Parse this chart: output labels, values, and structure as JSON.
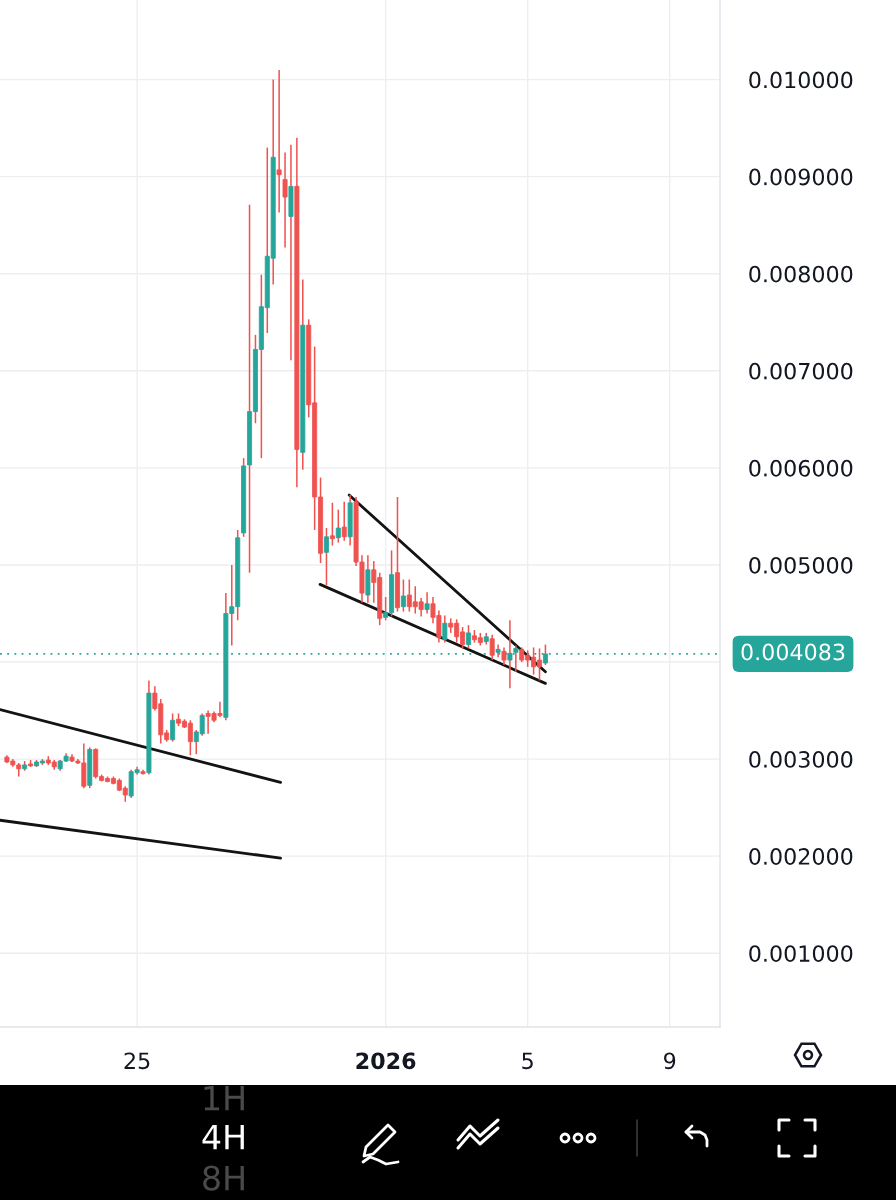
{
  "chart_data": {
    "type": "candlestick",
    "x": [
      "2025-12-21T08:00",
      "2025-12-21T12:00",
      "2025-12-21T16:00",
      "2025-12-21T20:00",
      "2025-12-22T00:00",
      "2025-12-22T04:00",
      "2025-12-22T08:00",
      "2025-12-22T12:00",
      "2025-12-22T16:00",
      "2025-12-22T20:00",
      "2025-12-23T00:00",
      "2025-12-23T04:00",
      "2025-12-23T08:00",
      "2025-12-23T12:00",
      "2025-12-23T16:00",
      "2025-12-23T20:00",
      "2025-12-24T00:00",
      "2025-12-24T04:00",
      "2025-12-24T08:00",
      "2025-12-24T12:00",
      "2025-12-24T16:00",
      "2025-12-24T20:00",
      "2025-12-25T00:00",
      "2025-12-25T04:00",
      "2025-12-25T08:00",
      "2025-12-25T12:00",
      "2025-12-25T16:00",
      "2025-12-25T20:00",
      "2025-12-26T00:00",
      "2025-12-26T04:00",
      "2025-12-26T08:00",
      "2025-12-26T12:00",
      "2025-12-26T16:00",
      "2025-12-26T20:00",
      "2025-12-27T00:00",
      "2025-12-27T04:00",
      "2025-12-27T08:00",
      "2025-12-27T12:00",
      "2025-12-27T16:00",
      "2025-12-27T20:00",
      "2025-12-28T00:00",
      "2025-12-28T04:00",
      "2025-12-28T08:00",
      "2025-12-28T12:00",
      "2025-12-28T16:00",
      "2025-12-28T20:00",
      "2025-12-29T00:00",
      "2025-12-29T04:00",
      "2025-12-29T08:00",
      "2025-12-29T12:00",
      "2025-12-29T16:00",
      "2025-12-29T20:00",
      "2025-12-30T00:00",
      "2025-12-30T04:00",
      "2025-12-30T08:00",
      "2025-12-30T12:00",
      "2025-12-30T16:00",
      "2025-12-30T20:00",
      "2025-12-31T00:00",
      "2025-12-31T04:00",
      "2025-12-31T08:00",
      "2025-12-31T12:00",
      "2025-12-31T16:00",
      "2025-12-31T20:00",
      "2026-01-01T00:00",
      "2026-01-01T04:00",
      "2026-01-01T08:00",
      "2026-01-01T12:00",
      "2026-01-01T16:00",
      "2026-01-01T20:00",
      "2026-01-02T00:00",
      "2026-01-02T04:00",
      "2026-01-02T08:00",
      "2026-01-02T12:00",
      "2026-01-02T16:00",
      "2026-01-02T20:00",
      "2026-01-03T00:00",
      "2026-01-03T04:00",
      "2026-01-03T08:00",
      "2026-01-03T12:00",
      "2026-01-03T16:00",
      "2026-01-03T20:00",
      "2026-01-04T00:00",
      "2026-01-04T04:00",
      "2026-01-04T08:00",
      "2026-01-04T12:00",
      "2026-01-04T16:00",
      "2026-01-04T20:00",
      "2026-01-05T00:00",
      "2026-01-05T04:00",
      "2026-01-05T08:00",
      "2026-01-05T12:00"
    ],
    "ohlc": [
      [
        0.00302,
        0.00304,
        0.00296,
        0.00297
      ],
      [
        0.00298,
        0.003,
        0.00292,
        0.00294
      ],
      [
        0.00294,
        0.00296,
        0.00282,
        0.0029
      ],
      [
        0.0029,
        0.00298,
        0.00288,
        0.00294
      ],
      [
        0.00295,
        0.00299,
        0.00292,
        0.00293
      ],
      [
        0.00293,
        0.00299,
        0.00292,
        0.00297
      ],
      [
        0.00296,
        0.003,
        0.00294,
        0.00298
      ],
      [
        0.00299,
        0.00303,
        0.00294,
        0.00296
      ],
      [
        0.00297,
        0.00299,
        0.00289,
        0.00292
      ],
      [
        0.0029,
        0.00299,
        0.00288,
        0.00298
      ],
      [
        0.00298,
        0.00306,
        0.00297,
        0.00303
      ],
      [
        0.00302,
        0.00305,
        0.00297,
        0.00298
      ],
      [
        0.00298,
        0.003,
        0.00295,
        0.00296
      ],
      [
        0.00296,
        0.00316,
        0.0027,
        0.00272
      ],
      [
        0.00273,
        0.00312,
        0.0027,
        0.0031
      ],
      [
        0.0031,
        0.00311,
        0.0028,
        0.00282
      ],
      [
        0.00282,
        0.00284,
        0.00277,
        0.00278
      ],
      [
        0.0028,
        0.00282,
        0.00276,
        0.00277
      ],
      [
        0.0028,
        0.00282,
        0.00274,
        0.00275
      ],
      [
        0.00278,
        0.0028,
        0.00267,
        0.00268
      ],
      [
        0.0027,
        0.00272,
        0.00256,
        0.00263
      ],
      [
        0.00262,
        0.00289,
        0.0026,
        0.00287
      ],
      [
        0.00286,
        0.00292,
        0.00284,
        0.00289
      ],
      [
        0.00287,
        0.00289,
        0.00284,
        0.00285
      ],
      [
        0.00286,
        0.00381,
        0.00284,
        0.00368
      ],
      [
        0.00368,
        0.00375,
        0.0035,
        0.00352
      ],
      [
        0.00357,
        0.00362,
        0.00316,
        0.00325
      ],
      [
        0.00327,
        0.0033,
        0.00318,
        0.0032
      ],
      [
        0.0032,
        0.00347,
        0.00318,
        0.0034
      ],
      [
        0.00341,
        0.00347,
        0.00334,
        0.00337
      ],
      [
        0.00339,
        0.00341,
        0.00332,
        0.00333
      ],
      [
        0.00337,
        0.0034,
        0.00304,
        0.00318
      ],
      [
        0.00318,
        0.0033,
        0.00305,
        0.00328
      ],
      [
        0.00326,
        0.00347,
        0.00324,
        0.00345
      ],
      [
        0.00347,
        0.0035,
        0.00326,
        0.00344
      ],
      [
        0.00347,
        0.00349,
        0.00338,
        0.0034
      ],
      [
        0.00347,
        0.00359,
        0.00343,
        0.00345
      ],
      [
        0.00343,
        0.00471,
        0.0034,
        0.0045
      ],
      [
        0.0045,
        0.005,
        0.00417,
        0.00457
      ],
      [
        0.00457,
        0.00536,
        0.00443,
        0.00528
      ],
      [
        0.00533,
        0.0061,
        0.00529,
        0.00602
      ],
      [
        0.00603,
        0.00871,
        0.00492,
        0.00658
      ],
      [
        0.00658,
        0.00737,
        0.00646,
        0.00722
      ],
      [
        0.00722,
        0.00799,
        0.0061,
        0.00766
      ],
      [
        0.00765,
        0.0093,
        0.00739,
        0.00818
      ],
      [
        0.00816,
        0.01,
        0.00789,
        0.0092
      ],
      [
        0.00907,
        0.0101,
        0.00863,
        0.00902
      ],
      [
        0.00897,
        0.00925,
        0.00827,
        0.00879
      ],
      [
        0.00859,
        0.00933,
        0.00711,
        0.0089
      ],
      [
        0.0089,
        0.0094,
        0.0058,
        0.00619
      ],
      [
        0.00616,
        0.00794,
        0.00598,
        0.00747
      ],
      [
        0.00747,
        0.00753,
        0.00652,
        0.00665
      ],
      [
        0.00667,
        0.00725,
        0.00536,
        0.0057
      ],
      [
        0.0057,
        0.0059,
        0.00502,
        0.00512
      ],
      [
        0.00513,
        0.00538,
        0.00479,
        0.00529
      ],
      [
        0.0053,
        0.00564,
        0.0052,
        0.00527
      ],
      [
        0.00528,
        0.00557,
        0.00523,
        0.00538
      ],
      [
        0.00539,
        0.00565,
        0.00525,
        0.00529
      ],
      [
        0.00529,
        0.00572,
        0.0052,
        0.00564
      ],
      [
        0.00565,
        0.0057,
        0.00499,
        0.00503
      ],
      [
        0.00503,
        0.0051,
        0.00461,
        0.00471
      ],
      [
        0.00469,
        0.0051,
        0.00461,
        0.00495
      ],
      [
        0.00495,
        0.00504,
        0.00461,
        0.00482
      ],
      [
        0.00487,
        0.00492,
        0.00438,
        0.00445
      ],
      [
        0.00446,
        0.00467,
        0.00443,
        0.00451
      ],
      [
        0.00451,
        0.00515,
        0.00447,
        0.0049
      ],
      [
        0.00492,
        0.0057,
        0.00452,
        0.00456
      ],
      [
        0.00457,
        0.00485,
        0.00452,
        0.00468
      ],
      [
        0.00469,
        0.00485,
        0.00452,
        0.00457
      ],
      [
        0.00462,
        0.00478,
        0.0045,
        0.00457
      ],
      [
        0.00462,
        0.00466,
        0.00447,
        0.00454
      ],
      [
        0.00454,
        0.00472,
        0.0045,
        0.0046
      ],
      [
        0.0046,
        0.00467,
        0.0044,
        0.00446
      ],
      [
        0.00448,
        0.00453,
        0.0042,
        0.00425
      ],
      [
        0.00423,
        0.00448,
        0.0042,
        0.0044
      ],
      [
        0.0044,
        0.00445,
        0.0043,
        0.00436
      ],
      [
        0.0044,
        0.00444,
        0.0042,
        0.00426
      ],
      [
        0.00431,
        0.00436,
        0.00414,
        0.00418
      ],
      [
        0.00418,
        0.00438,
        0.00414,
        0.0043
      ],
      [
        0.00427,
        0.00433,
        0.0042,
        0.00423
      ],
      [
        0.00425,
        0.0043,
        0.00417,
        0.0042
      ],
      [
        0.00421,
        0.0043,
        0.00418,
        0.00426
      ],
      [
        0.00424,
        0.00428,
        0.00402,
        0.00407
      ],
      [
        0.0041,
        0.00418,
        0.00405,
        0.00413
      ],
      [
        0.00411,
        0.00415,
        0.00397,
        0.00402
      ],
      [
        0.00402,
        0.00443,
        0.00373,
        0.00409
      ],
      [
        0.0041,
        0.00417,
        0.0039,
        0.00414
      ],
      [
        0.00413,
        0.00415,
        0.004,
        0.00402
      ],
      [
        0.00407,
        0.00412,
        0.00395,
        0.00402
      ],
      [
        0.00405,
        0.00415,
        0.00387,
        0.00395
      ],
      [
        0.00402,
        0.00414,
        0.00381,
        0.00395
      ],
      [
        0.00399,
        0.00418,
        0.00397,
        0.004083
      ]
    ],
    "colors": [
      "#ef5350",
      "#ef5350",
      "#ef5350",
      "#26a69a",
      "#ef5350",
      "#26a69a",
      "#26a69a",
      "#ef5350",
      "#ef5350",
      "#26a69a",
      "#26a69a",
      "#ef5350",
      "#ef5350",
      "#ef5350",
      "#26a69a",
      "#ef5350",
      "#ef5350",
      "#ef5350",
      "#ef5350",
      "#ef5350",
      "#ef5350",
      "#26a69a",
      "#26a69a",
      "#ef5350",
      "#26a69a",
      "#ef5350",
      "#ef5350",
      "#ef5350",
      "#26a69a",
      "#ef5350",
      "#ef5350",
      "#ef5350",
      "#26a69a",
      "#26a69a",
      "#ef5350",
      "#ef5350",
      "#ef5350",
      "#26a69a",
      "#26a69a",
      "#26a69a",
      "#26a69a",
      "#26a69a",
      "#26a69a",
      "#26a69a",
      "#26a69a",
      "#26a69a",
      "#ef5350",
      "#ef5350",
      "#26a69a",
      "#ef5350",
      "#26a69a",
      "#ef5350",
      "#ef5350",
      "#ef5350",
      "#26a69a",
      "#ef5350",
      "#26a69a",
      "#ef5350",
      "#26a69a",
      "#ef5350",
      "#ef5350",
      "#26a69a",
      "#ef5350",
      "#ef5350",
      "#26a69a",
      "#26a69a",
      "#ef5350",
      "#26a69a",
      "#ef5350",
      "#ef5350",
      "#ef5350",
      "#26a69a",
      "#ef5350",
      "#ef5350",
      "#26a69a",
      "#ef5350",
      "#ef5350",
      "#ef5350",
      "#26a69a",
      "#ef5350",
      "#ef5350",
      "#26a69a",
      "#ef5350",
      "#26a69a",
      "#ef5350",
      "#26a69a",
      "#26a69a",
      "#ef5350",
      "#ef5350",
      "#ef5350",
      "#ef5350",
      "#26a69a"
    ],
    "color": "#ef5350",
    "series": [
      {
        "type": "line",
        "color": "#131313",
        "x": [
          "2025-12-21T03:20",
          "2025-12-29T01:00"
        ],
        "values": [
          0.00351,
          0.00276
        ]
      },
      {
        "type": "line",
        "color": "#131313",
        "x": [
          "2025-12-21T03:20",
          "2025-12-29T01:00"
        ],
        "values": [
          0.00237,
          0.00198
        ]
      },
      {
        "type": "line",
        "color": "#131313",
        "x": [
          "2025-12-30T23:20",
          "2026-01-05T12:00"
        ],
        "values": [
          0.00572,
          0.0039
        ]
      },
      {
        "type": "line",
        "color": "#131313",
        "x": [
          "2025-12-30T03:40",
          "2026-01-05T12:00"
        ],
        "values": [
          0.0048,
          0.00378
        ]
      }
    ],
    "ref_lines": [
      {
        "axis": "y",
        "value": 0.004083,
        "label": "0.004083",
        "color": "#26a69a",
        "line_style": "dotted"
      }
    ],
    "xlim": [
      "2025-12-21T03:20",
      "2026-01-10T10:00"
    ],
    "xticks": [
      {
        "value": "2025-12-25",
        "label": "25"
      },
      {
        "value": "2026-01-01",
        "label": "2026"
      },
      {
        "value": "2026-01-05",
        "label": "5"
      },
      {
        "value": "2026-01-09",
        "label": "9"
      }
    ],
    "ylim": [
      0.00024,
      0.01082
    ],
    "yticks": [
      {
        "value": 0.001,
        "label": "0.001000"
      },
      {
        "value": 0.002,
        "label": "0.002000"
      },
      {
        "value": 0.003,
        "label": "0.003000"
      },
      {
        "value": 0.004,
        "label": null
      },
      {
        "value": 0.005,
        "label": "0.005000"
      },
      {
        "value": 0.006,
        "label": "0.006000"
      },
      {
        "value": 0.007,
        "label": "0.007000"
      },
      {
        "value": 0.008,
        "label": "0.008000"
      },
      {
        "value": 0.009,
        "label": "0.009000"
      },
      {
        "value": 0.01,
        "label": "0.010000"
      }
    ],
    "grid": true,
    "annotations": [
      "1H",
      "4H",
      "8H"
    ]
  }
}
